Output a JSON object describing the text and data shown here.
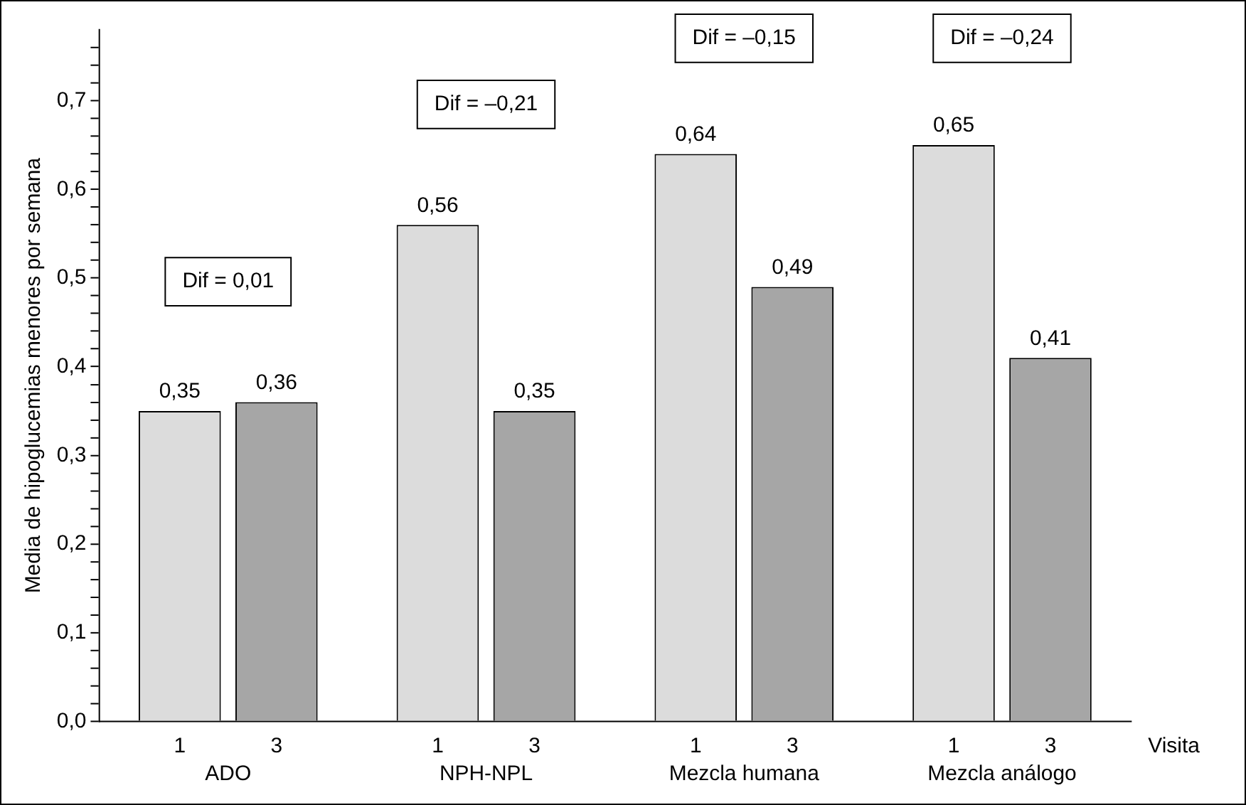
{
  "chart_data": {
    "type": "bar",
    "ylabel": "Media de hipoglucemias menores por semana",
    "xlabel": "Visita",
    "categories": [
      "ADO",
      "NPH-NPL",
      "Mezcla humana",
      "Mezcla análogo"
    ],
    "series": [
      {
        "name": "1",
        "color": "#dcdcdc",
        "values": [
          0.35,
          0.56,
          0.64,
          0.65
        ],
        "value_labels": [
          "0,35",
          "0,56",
          "0,64",
          "0,65"
        ]
      },
      {
        "name": "3",
        "color": "#a6a6a6",
        "values": [
          0.36,
          0.35,
          0.49,
          0.41
        ],
        "value_labels": [
          "0,36",
          "0,35",
          "0,49",
          "0,41"
        ]
      }
    ],
    "ylim": [
      0,
      0.78
    ],
    "yticks": [
      {
        "value": 0,
        "label": "0,0"
      },
      {
        "value": 0.02,
        "label": null
      },
      {
        "value": 0.04,
        "label": null
      },
      {
        "value": 0.06,
        "label": null
      },
      {
        "value": 0.08,
        "label": null
      },
      {
        "value": 0.1,
        "label": "0,1"
      },
      {
        "value": 0.12,
        "label": null
      },
      {
        "value": 0.14,
        "label": null
      },
      {
        "value": 0.16,
        "label": null
      },
      {
        "value": 0.18,
        "label": null
      },
      {
        "value": 0.2,
        "label": "0,2"
      },
      {
        "value": 0.22,
        "label": null
      },
      {
        "value": 0.24,
        "label": null
      },
      {
        "value": 0.26,
        "label": null
      },
      {
        "value": 0.28,
        "label": null
      },
      {
        "value": 0.3,
        "label": "0,3"
      },
      {
        "value": 0.32,
        "label": null
      },
      {
        "value": 0.34,
        "label": null
      },
      {
        "value": 0.36,
        "label": null
      },
      {
        "value": 0.38,
        "label": null
      },
      {
        "value": 0.4,
        "label": "0,4"
      },
      {
        "value": 0.42,
        "label": null
      },
      {
        "value": 0.44,
        "label": null
      },
      {
        "value": 0.46,
        "label": null
      },
      {
        "value": 0.48,
        "label": null
      },
      {
        "value": 0.5,
        "label": "0,5"
      },
      {
        "value": 0.52,
        "label": null
      },
      {
        "value": 0.54,
        "label": null
      },
      {
        "value": 0.56,
        "label": null
      },
      {
        "value": 0.58,
        "label": null
      },
      {
        "value": 0.6,
        "label": "0,6"
      },
      {
        "value": 0.62,
        "label": null
      },
      {
        "value": 0.64,
        "label": null
      },
      {
        "value": 0.66,
        "label": null
      },
      {
        "value": 0.68,
        "label": null
      },
      {
        "value": 0.7,
        "label": "0,7"
      },
      {
        "value": 0.72,
        "label": null
      },
      {
        "value": 0.74,
        "label": null
      },
      {
        "value": 0.76,
        "label": null
      }
    ],
    "annotations": [
      "Dif = 0,01",
      "Dif = –0,21",
      "Dif = –0,15",
      "Dif = –0,24"
    ]
  }
}
